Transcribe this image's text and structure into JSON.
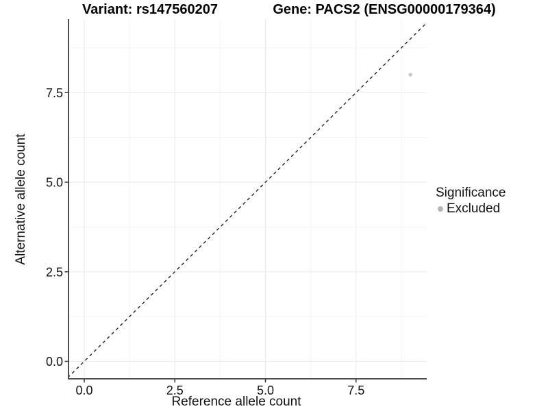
{
  "figure": {
    "titles": {
      "variant": "Variant: rs147560207",
      "gene": "Gene: PACS2 (ENSG00000179364)"
    }
  },
  "legend": {
    "title": "Significance",
    "entries": [
      {
        "label": "Excluded",
        "color": "#b5b5b5",
        "marker": "circle"
      }
    ]
  },
  "colors": {
    "point": "#c6c6c6",
    "legend_dot": "#b5b5b5",
    "grid_major": "#e9e9e9",
    "grid_minor": "#f4f4f4",
    "axis_line": "#4d4d4d",
    "tick_mark": "#333333",
    "text": "#111111",
    "reference_line": "#111111",
    "background": "#ffffff"
  },
  "chart_data": {
    "type": "scatter",
    "title": "Variant: rs147560207    Gene: PACS2 (ENSG00000179364)",
    "xlabel": "Reference allele count",
    "ylabel": "Alternative allele count",
    "xlim": [
      -0.45,
      9.55
    ],
    "ylim": [
      -0.5,
      9.55
    ],
    "x_ticks": [
      0,
      2.5,
      5,
      7.5
    ],
    "x_tick_labels": [
      "0.0",
      "2.5",
      "5.0",
      "7.5"
    ],
    "y_ticks": [
      0,
      2.5,
      5,
      7.5
    ],
    "y_tick_labels": [
      "0.0",
      "2.5",
      "5.0",
      "7.5"
    ],
    "x_minor_ticks": [
      1.25,
      3.75,
      6.25,
      8.75
    ],
    "y_minor_ticks": [
      1.25,
      3.75,
      6.25,
      8.75
    ],
    "grid": "major and minor gridlines, light gray, on white panel",
    "points": [
      {
        "x": 9,
        "y": 8,
        "significance": "Excluded"
      }
    ],
    "reference_line": "dashed black identity line y = x from origin corner to top right",
    "legend_position": "right-middle"
  }
}
